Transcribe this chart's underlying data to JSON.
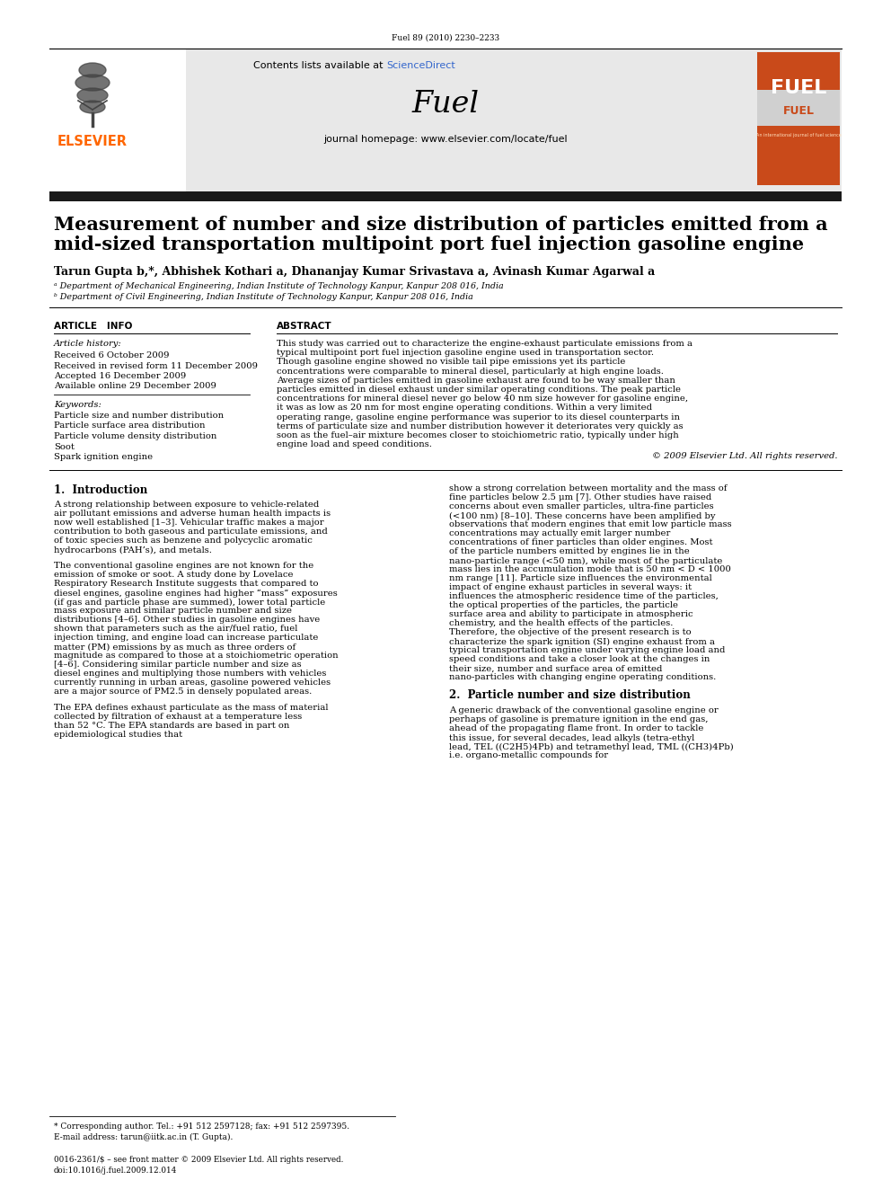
{
  "journal_ref": "Fuel 89 (2010) 2230–2233",
  "contents_text": "Contents lists available at ScienceDirect",
  "sciencedirect_color": "#ff6600",
  "journal_name": "Fuel",
  "homepage_text": "journal homepage: www.elsevier.com/locate/fuel",
  "elsevier_color": "#ff6600",
  "title_line1": "Measurement of number and size distribution of particles emitted from a",
  "title_line2": "mid-sized transportation multipoint port fuel injection gasoline engine",
  "authors": "Tarun Gupta b,*, Abhishek Kothari a, Dhananjay Kumar Srivastava a, Avinash Kumar Agarwal a",
  "affil_a": "ᵃ Department of Mechanical Engineering, Indian Institute of Technology Kanpur, Kanpur 208 016, India",
  "affil_b": "ᵇ Department of Civil Engineering, Indian Institute of Technology Kanpur, Kanpur 208 016, India",
  "article_info_header": "ARTICLE   INFO",
  "abstract_header": "ABSTRACT",
  "article_history_label": "Article history:",
  "received": "Received 6 October 2009",
  "received_revised": "Received in revised form 11 December 2009",
  "accepted": "Accepted 16 December 2009",
  "available": "Available online 29 December 2009",
  "keywords_label": "Keywords:",
  "keyword1": "Particle size and number distribution",
  "keyword2": "Particle surface area distribution",
  "keyword3": "Particle volume density distribution",
  "keyword4": "Soot",
  "keyword5": "Spark ignition engine",
  "abstract_text": "This study was carried out to characterize the engine-exhaust particulate emissions from a typical multipoint port fuel injection gasoline engine used in transportation sector. Though gasoline engine showed no visible tail pipe emissions yet its particle concentrations were comparable to mineral diesel, particularly at high engine loads. Average sizes of particles emitted in gasoline exhaust are found to be way smaller than particles emitted in diesel exhaust under similar operating conditions. The peak particle concentrations for mineral diesel never go below 40 nm size however for gasoline engine, it was as low as 20 nm for most engine operating conditions. Within a very limited operating range, gasoline engine performance was superior to its diesel counterparts in terms of particulate size and number distribution however it deteriorates very quickly as soon as the fuel–air mixture becomes closer to stoichiometric ratio, typically under high engine load and speed conditions.",
  "copyright_text": "© 2009 Elsevier Ltd. All rights reserved.",
  "intro_header": "1.  Introduction",
  "intro_text1": "A strong relationship between exposure to vehicle-related air pollutant emissions and adverse human health impacts is now well established [1–3]. Vehicular traffic makes a major contribution to both gaseous and particulate emissions, and of toxic species such as benzene and polycyclic aromatic hydrocarbons (PAH’s), and metals.",
  "intro_text2": "The conventional gasoline engines are not known for the emission of smoke or soot. A study done by Lovelace Respiratory Research Institute suggests that compared to diesel engines, gasoline engines had higher “mass” exposures (if gas and particle phase are summed), lower total particle mass exposure and similar particle number and size distributions [4–6]. Other studies in gasoline engines have shown that parameters such as the air/fuel ratio, fuel injection timing, and engine load can increase particulate matter (PM) emissions by as much as three orders of magnitude as compared to those at a stoichiometric operation [4–6]. Considering similar particle number and size as diesel engines and multiplying those numbers with vehicles currently running in urban areas, gasoline powered vehicles are a major source of PM2.5 in densely populated areas.",
  "intro_text3": "The EPA defines exhaust particulate as the mass of material collected by filtration of exhaust at a temperature less than 52 °C. The EPA standards are based in part on epidemiological studies that",
  "right_col_text1": "show a strong correlation between mortality and the mass of fine particles below 2.5 μm [7]. Other studies have raised concerns about even smaller particles, ultra-fine particles (<100 nm) [8–10]. These concerns have been amplified by observations that modern engines that emit low particle mass concentrations may actually emit larger number concentrations of finer particles than older engines. Most of the particle numbers emitted by engines lie in the nano-particle range (<50 nm), while most of the particulate mass lies in the accumulation mode that is 50 nm < D < 1000 nm range [11]. Particle size influences the environmental impact of engine exhaust particles in several ways: it influences the atmospheric residence time of the particles, the optical properties of the particles, the particle surface area and ability to participate in atmospheric chemistry, and the health effects of the particles. Therefore, the objective of the present research is to characterize the spark ignition (SI) engine exhaust from a typical transportation engine under varying engine load and speed conditions and take a closer look at the changes in their size, number and surface area of emitted nano-particles with changing engine operating conditions.",
  "section2_header": "2.  Particle number and size distribution",
  "section2_text": "A generic drawback of the conventional gasoline engine or perhaps of gasoline is premature ignition in the end gas, ahead of the propagating flame front. In order to tackle this issue, for several decades, lead alkyls (tetra-ethyl lead, TEL ((C2H5)4Pb) and tetramethyl lead, TML ((CH3)4Pb) i.e. organo-metallic compounds for",
  "footnote_corresponding": "* Corresponding author. Tel.: +91 512 2597128; fax: +91 512 2597395.",
  "footnote_email": "E-mail address: tarun@iitk.ac.in (T. Gupta).",
  "footer_issn": "0016-2361/$ – see front matter © 2009 Elsevier Ltd. All rights reserved.",
  "footer_doi": "doi:10.1016/j.fuel.2009.12.014",
  "bg_color": "#ffffff",
  "header_bg": "#e8e8e8",
  "black_bar_color": "#1a1a1a",
  "text_color": "#000000",
  "link_color": "#3366cc"
}
